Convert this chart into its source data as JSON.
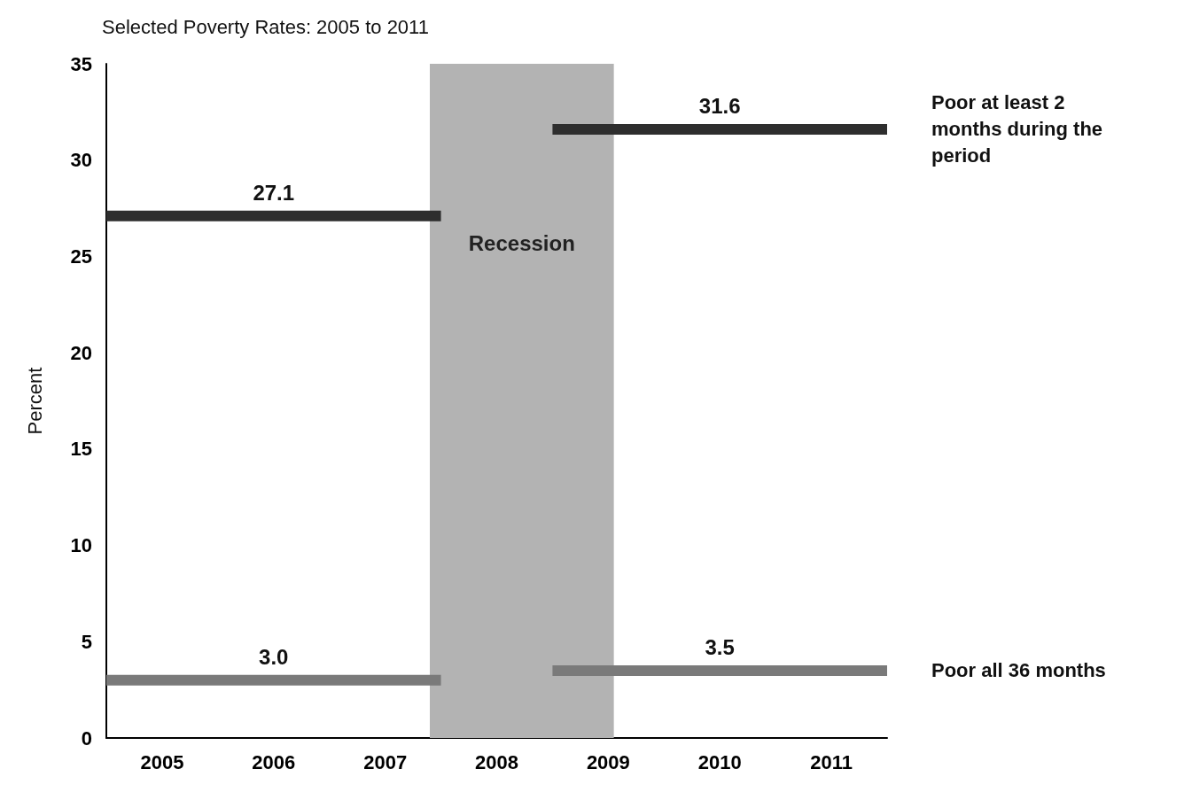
{
  "chart_data": {
    "type": "line",
    "title": "Selected Poverty Rates: 2005 to 2011",
    "ylabel": "Percent",
    "xlim": [
      2004.5,
      2011.5
    ],
    "xticks": [
      2005,
      2006,
      2007,
      2008,
      2009,
      2010,
      2011
    ],
    "ylim": [
      0,
      35
    ],
    "yticks": [
      0,
      5,
      10,
      15,
      20,
      25,
      30,
      35
    ],
    "series": [
      {
        "name": "Poor at least 2 months during the period",
        "color": "#2e2e2e",
        "x": [
          2004.5,
          2006,
          2007.5,
          2008,
          2008.5,
          2010,
          2011.5
        ],
        "values": [
          27.1,
          27.1,
          27.1,
          null,
          31.6,
          31.6,
          31.6
        ],
        "value_labels": [
          null,
          "27.1",
          null,
          null,
          null,
          "31.6",
          null
        ]
      },
      {
        "name": "Poor all 36 months",
        "color": "#7a7a7a",
        "x": [
          2004.5,
          2006,
          2007.5,
          2008,
          2008.5,
          2010,
          2011.5
        ],
        "values": [
          3.0,
          3.0,
          3.0,
          null,
          3.5,
          3.5,
          3.5
        ],
        "value_labels": [
          null,
          "3.0",
          null,
          null,
          null,
          "3.5",
          null
        ]
      }
    ],
    "bands": [
      {
        "axis": "x",
        "from": 2007.4,
        "to": 2009.05,
        "label": "Recession",
        "color": "#b3b3b3"
      }
    ],
    "grid": false,
    "legend": false,
    "marker": "none",
    "line_style": "solid"
  }
}
